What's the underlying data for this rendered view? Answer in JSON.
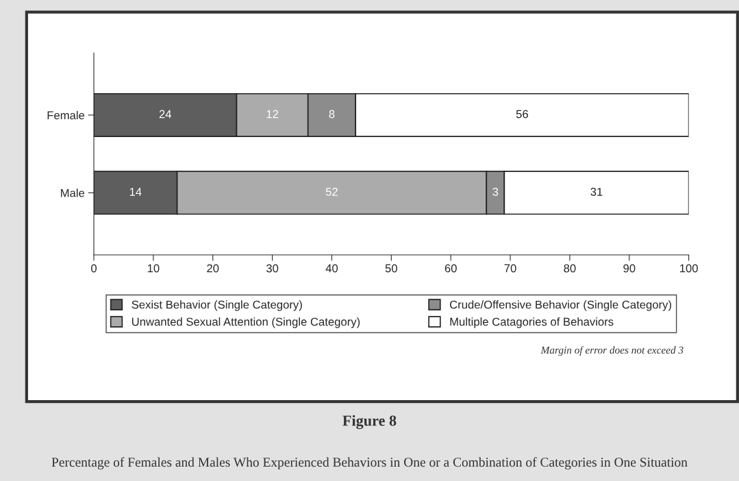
{
  "chart_data": {
    "type": "bar",
    "orientation": "horizontal",
    "stacked": true,
    "title": "Figure 8",
    "subtitle": "Percentage of Females and Males Who Experienced Behaviors in One or a Combination of Categories in One Situation",
    "categories": [
      "Female",
      "Male"
    ],
    "series": [
      {
        "name": "Sexist Behavior (Single Category)",
        "color": "#5e5e5e",
        "values": [
          24,
          14
        ]
      },
      {
        "name": "Unwanted Sexual Attention (Single Category)",
        "color": "#ababab",
        "values": [
          12,
          52
        ]
      },
      {
        "name": "Crude/Offensive Behavior (Single Category)",
        "color": "#8c8c8c",
        "values": [
          8,
          3
        ]
      },
      {
        "name": "Multiple Catagories of Behaviors",
        "color": "#ffffff",
        "values": [
          56,
          31
        ]
      }
    ],
    "xlim": [
      0,
      100
    ],
    "xticks": [
      0,
      10,
      20,
      30,
      40,
      50,
      60,
      70,
      80,
      90,
      100
    ],
    "data_labels": true,
    "legend": "bottom",
    "grid": false,
    "annotations": [
      "Margin of error does not exceed 3"
    ]
  }
}
